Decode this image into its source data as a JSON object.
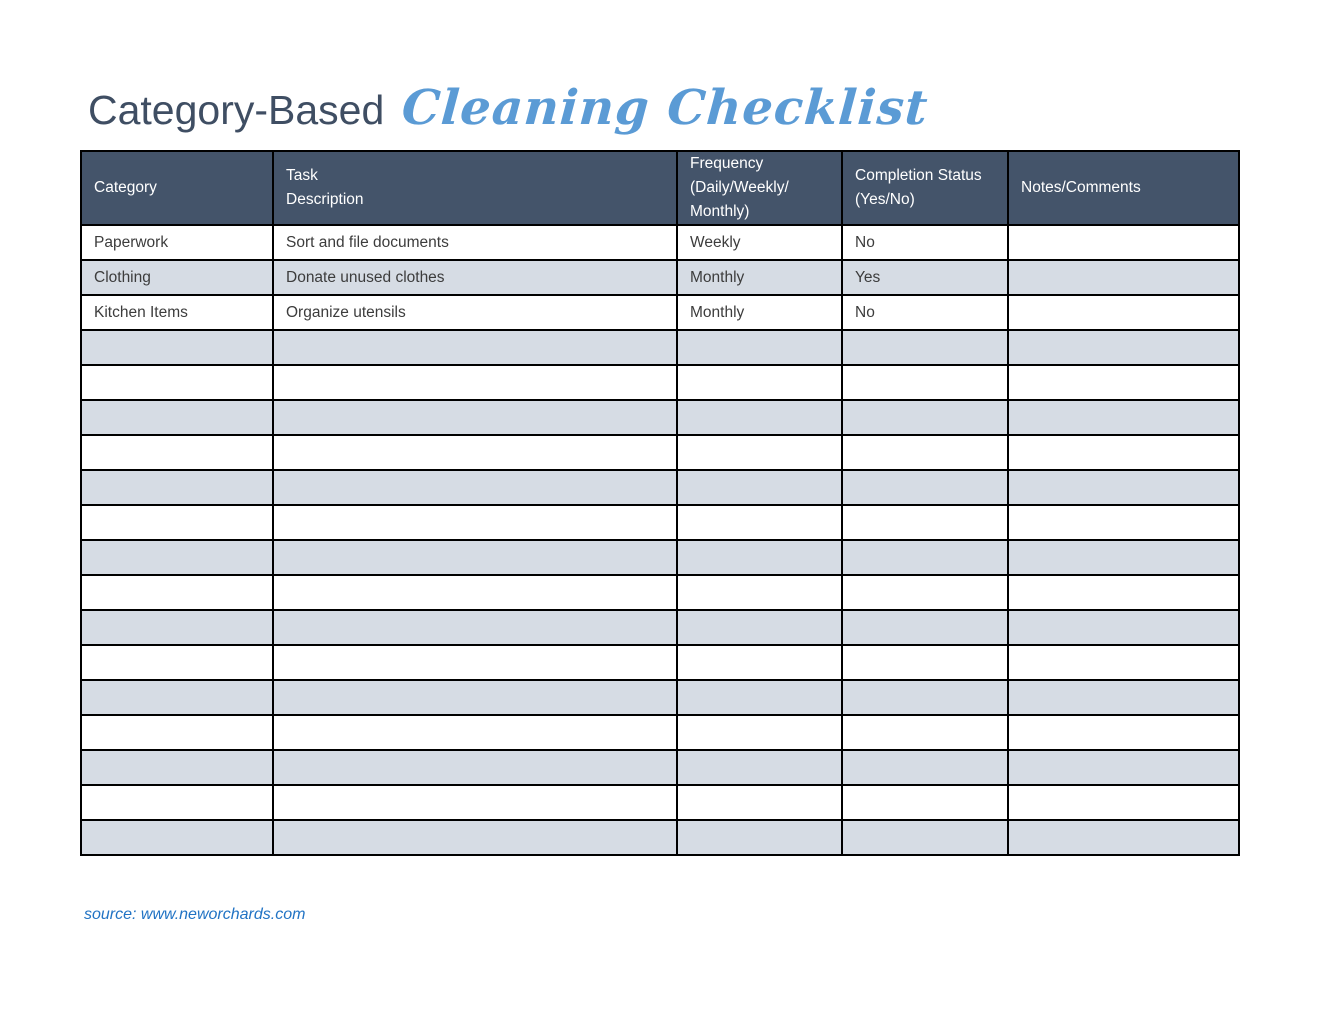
{
  "title": {
    "regular": "Category-Based",
    "script": "Cleaning Checklist"
  },
  "source": {
    "label": "source: www.neworchards.com"
  },
  "colors": {
    "header_bg": "#44546A",
    "header_text": "#FFFFFF",
    "alt_row_bg": "#D6DCE4",
    "border": "#000000",
    "title_color": "#3F4E63",
    "script_color": "#5B9BD5",
    "source_color": "#2173C4",
    "body_text": "#3C3C3C"
  },
  "table": {
    "headers": [
      "Category",
      "Task\nDescription",
      "Frequency\n(Daily/Weekly/\nMonthly)",
      "Completion Status\n(Yes/No)",
      "Notes/Comments"
    ],
    "rows": [
      [
        "Paperwork",
        "Sort and file documents",
        "Weekly",
        "No",
        ""
      ],
      [
        "Clothing",
        "Donate unused clothes",
        "Monthly",
        "Yes",
        ""
      ],
      [
        "Kitchen Items",
        "Organize utensils",
        "Monthly",
        "No",
        ""
      ],
      [
        "",
        "",
        "",
        "",
        ""
      ],
      [
        "",
        "",
        "",
        "",
        ""
      ],
      [
        "",
        "",
        "",
        "",
        ""
      ],
      [
        "",
        "",
        "",
        "",
        ""
      ],
      [
        "",
        "",
        "",
        "",
        ""
      ],
      [
        "",
        "",
        "",
        "",
        ""
      ],
      [
        "",
        "",
        "",
        "",
        ""
      ],
      [
        "",
        "",
        "",
        "",
        ""
      ],
      [
        "",
        "",
        "",
        "",
        ""
      ],
      [
        "",
        "",
        "",
        "",
        ""
      ],
      [
        "",
        "",
        "",
        "",
        ""
      ],
      [
        "",
        "",
        "",
        "",
        ""
      ],
      [
        "",
        "",
        "",
        "",
        ""
      ],
      [
        "",
        "",
        "",
        "",
        ""
      ],
      [
        "",
        "",
        "",
        "",
        ""
      ]
    ]
  }
}
